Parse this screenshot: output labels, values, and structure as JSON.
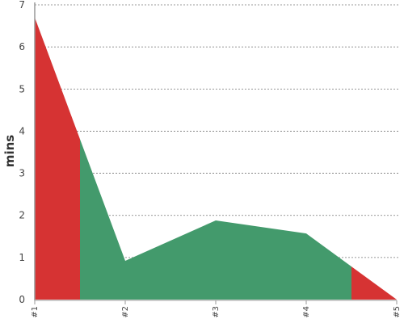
{
  "chart_data": {
    "type": "area",
    "title": "",
    "xlabel": "",
    "ylabel": "mins",
    "categories": [
      "#1",
      "#2",
      "#3",
      "#4",
      "#5"
    ],
    "x": [
      1,
      2,
      3,
      4,
      5
    ],
    "values": [
      6.7,
      0.92,
      1.88,
      1.57,
      0.0
    ],
    "ylim": [
      0,
      7
    ],
    "yticks": [
      0,
      1,
      2,
      3,
      4,
      5,
      6,
      7
    ],
    "grid": true,
    "legend": "none",
    "segments": [
      {
        "from": 1.0,
        "to": 1.5,
        "color": "#d63333"
      },
      {
        "from": 1.5,
        "to": 4.5,
        "color": "#439a6c"
      },
      {
        "from": 4.5,
        "to": 5.0,
        "color": "#d63333"
      }
    ]
  }
}
